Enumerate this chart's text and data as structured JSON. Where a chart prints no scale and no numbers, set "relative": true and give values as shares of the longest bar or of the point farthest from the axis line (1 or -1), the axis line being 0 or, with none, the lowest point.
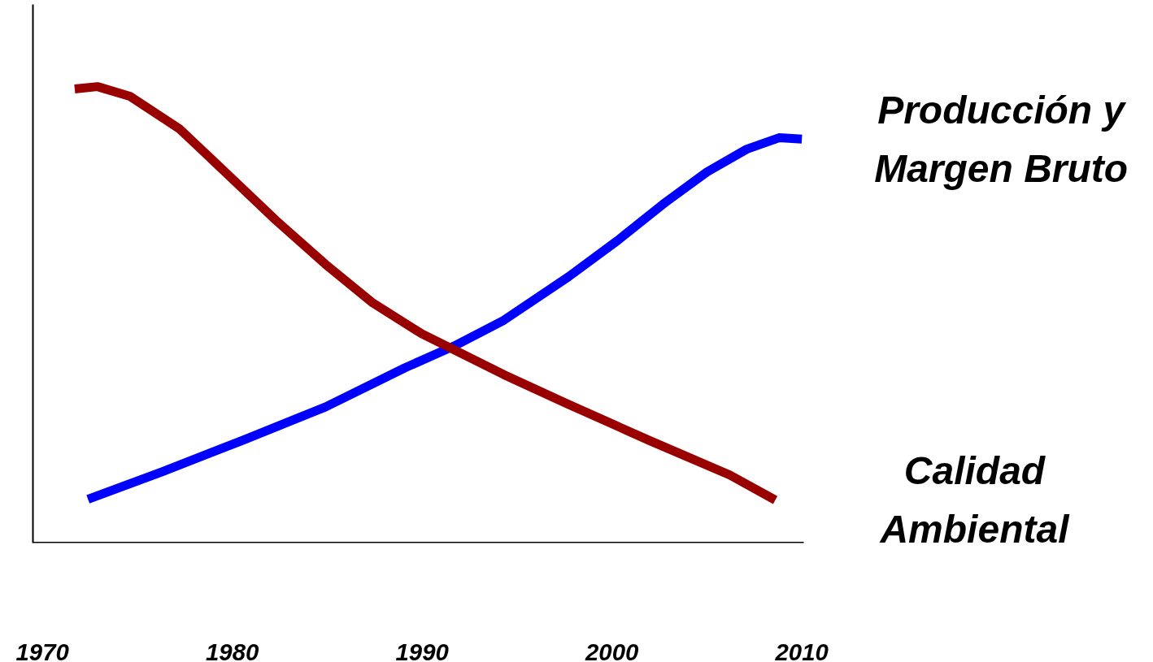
{
  "chart_data": {
    "type": "line",
    "relative": true,
    "xlim": [
      1969.5,
      2010.1
    ],
    "xticks": [
      1970,
      1980,
      1990,
      2000,
      2010
    ],
    "grid": false,
    "marker": "none",
    "line_style": "solid",
    "series": [
      {
        "name": "Producción y\nMargen Bruto",
        "color": "#0000ff",
        "x": [
          1972.4,
          1976.3,
          1980.6,
          1984.9,
          1989.1,
          1991.7,
          1994.3,
          1997.7,
          2000.3,
          2002.8,
          2005.0,
          2007.1,
          2008.8,
          2010.0
        ],
        "values": [
          0.096,
          0.156,
          0.226,
          0.298,
          0.384,
          0.432,
          0.488,
          0.583,
          0.663,
          0.746,
          0.813,
          0.863,
          0.888,
          0.885
        ]
      },
      {
        "name": "Calidad\nAmbiental",
        "color": "#990000",
        "x": [
          1971.7,
          1972.9,
          1974.6,
          1977.2,
          1979.7,
          1982.3,
          1984.9,
          1987.4,
          1990.0,
          1991.7,
          1994.3,
          1997.7,
          2002.0,
          2006.2,
          2008.6
        ],
        "values": [
          0.995,
          1.0,
          0.979,
          0.908,
          0.81,
          0.707,
          0.611,
          0.526,
          0.458,
          0.423,
          0.369,
          0.304,
          0.224,
          0.149,
          0.094
        ]
      }
    ]
  }
}
